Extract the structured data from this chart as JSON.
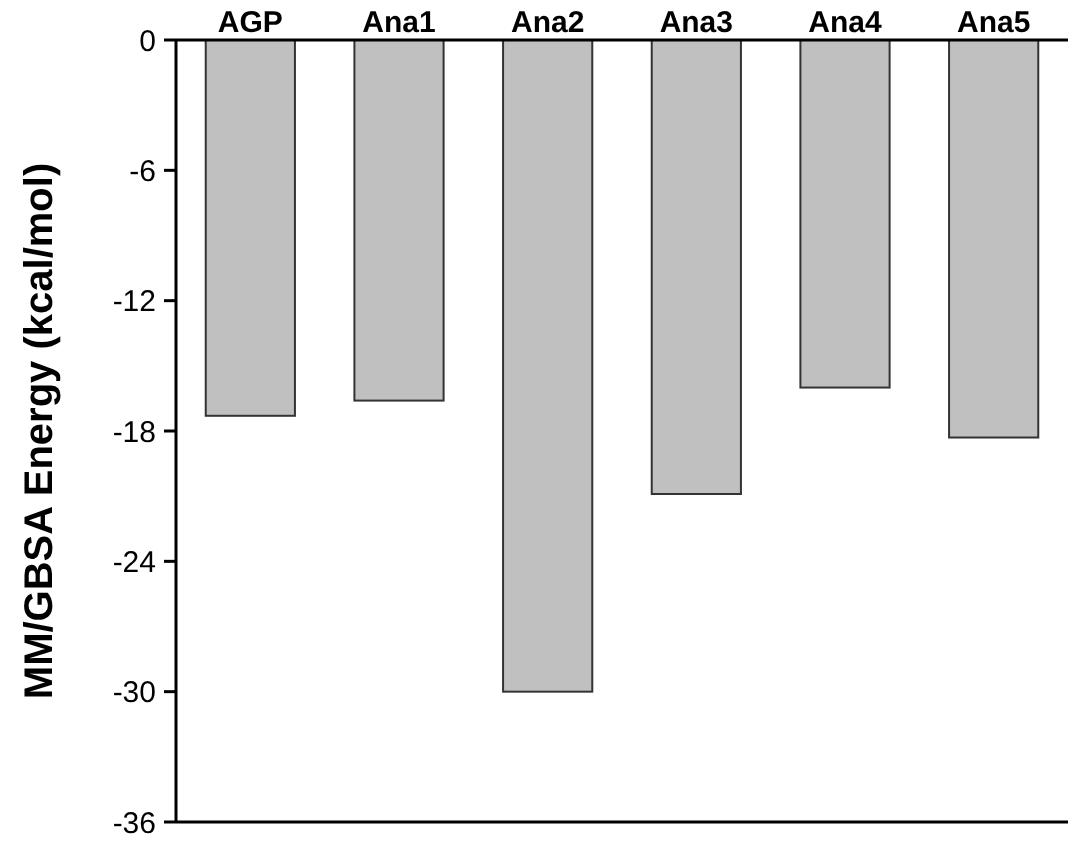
{
  "chart_data": {
    "type": "bar",
    "ylabel": "MM/GBSA Energy (kcal/mol)",
    "categories": [
      "AGP",
      "Ana1",
      "Ana2",
      "Ana3",
      "Ana4",
      "Ana5"
    ],
    "values": [
      -17.3,
      -16.6,
      -30,
      -20.9,
      -16,
      -18.3
    ],
    "color": "#c0c0c0",
    "ylim": [
      -36,
      0
    ],
    "yticks": [
      -36,
      -30,
      -24,
      -18,
      -12,
      -6,
      0
    ],
    "grid": false
  }
}
